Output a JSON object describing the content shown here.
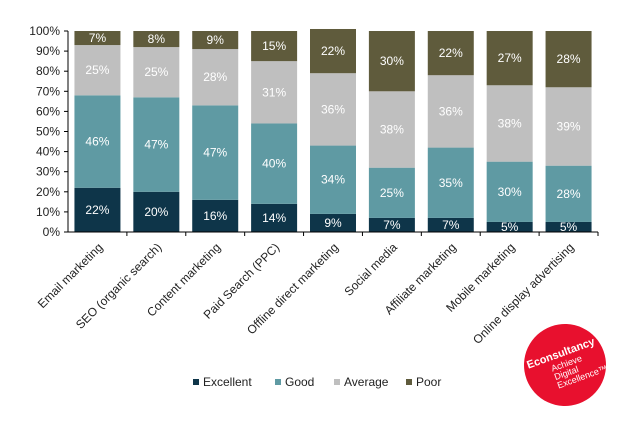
{
  "chart_data": {
    "type": "bar",
    "stacked": true,
    "normalized_percent": true,
    "categories": [
      "Email marketing",
      "SEO (organic search)",
      "Content marketing",
      "Paid Search (PPC)",
      "Offline direct marketing",
      "Social media",
      "Affiliate marketing",
      "Mobile marketing",
      "Online display advertising"
    ],
    "series": [
      {
        "name": "Excellent",
        "color": "#0e3549",
        "label_color": "#ffffff",
        "values": [
          22,
          20,
          16,
          14,
          9,
          7,
          7,
          5,
          5
        ]
      },
      {
        "name": "Good",
        "color": "#5f9aa3",
        "label_color": "#ffffff",
        "values": [
          46,
          47,
          47,
          40,
          34,
          25,
          35,
          30,
          28
        ]
      },
      {
        "name": "Average",
        "color": "#bfbfbf",
        "label_color": "#ffffff",
        "values": [
          25,
          25,
          28,
          31,
          36,
          38,
          36,
          38,
          39
        ]
      },
      {
        "name": "Poor",
        "color": "#5f5b3c",
        "label_color": "#ffffff",
        "values": [
          7,
          8,
          9,
          15,
          22,
          30,
          22,
          27,
          28
        ]
      }
    ],
    "ylim": [
      0,
      100
    ],
    "yticks": [
      "0%",
      "10%",
      "20%",
      "30%",
      "40%",
      "50%",
      "60%",
      "70%",
      "80%",
      "90%",
      "100%"
    ],
    "value_suffix": "%",
    "legend_position": "bottom",
    "grid": false
  },
  "logo": {
    "brand": "Econsultancy",
    "tagline": [
      "Achieve",
      "Digital",
      "Excellence™"
    ],
    "color": "#e8102e"
  }
}
